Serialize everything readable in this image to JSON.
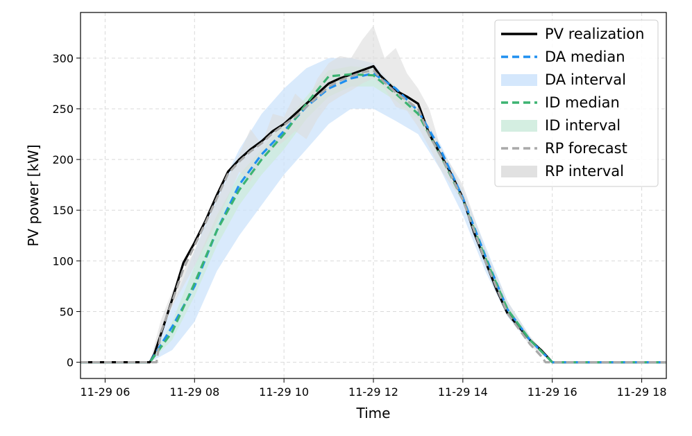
{
  "chart_data": {
    "type": "line",
    "title": "",
    "xlabel": "Time",
    "ylabel": "PV power [kW]",
    "x_unit": "hours (11-29)",
    "xlim": [
      5.45,
      18.55
    ],
    "ylim": [
      -16,
      345
    ],
    "grid": true,
    "legend_position": "top-right",
    "x_ticks": [
      {
        "value": 6,
        "label": "11-29 06"
      },
      {
        "value": 8,
        "label": "11-29 08"
      },
      {
        "value": 10,
        "label": "11-29 10"
      },
      {
        "value": 12,
        "label": "11-29 12"
      },
      {
        "value": 14,
        "label": "11-29 14"
      },
      {
        "value": 16,
        "label": "11-29 16"
      },
      {
        "value": 18,
        "label": "11-29 18"
      }
    ],
    "y_ticks": [
      {
        "value": 0,
        "label": "0"
      },
      {
        "value": 50,
        "label": "50"
      },
      {
        "value": 100,
        "label": "100"
      },
      {
        "value": 150,
        "label": "150"
      },
      {
        "value": 200,
        "label": "200"
      },
      {
        "value": 250,
        "label": "250"
      },
      {
        "value": 300,
        "label": "300"
      }
    ],
    "colors": {
      "pv": "#000000",
      "da": "#1f8ff0",
      "da_band": "#cce3fb",
      "id": "#3cb371",
      "id_band": "#cdebdc",
      "rp": "#a9a9a9",
      "rp_band": "#dcdcdc",
      "grid": "#d9d9d9"
    },
    "bands": [
      {
        "name": "DA interval",
        "x": [
          5.45,
          7.0,
          7.5,
          8.0,
          8.5,
          9.0,
          9.5,
          10.0,
          10.5,
          11.0,
          11.5,
          12.0,
          12.5,
          13.0,
          13.5,
          14.0,
          14.5,
          15.0,
          15.5,
          16.0,
          18.55
        ],
        "lower": [
          0,
          0,
          12,
          40,
          90,
          125,
          155,
          185,
          210,
          235,
          250,
          250,
          238,
          225,
          190,
          145,
          90,
          45,
          18,
          0,
          0
        ],
        "upper": [
          0,
          0,
          55,
          110,
          165,
          210,
          245,
          270,
          290,
          300,
          300,
          295,
          270,
          250,
          215,
          170,
          115,
          60,
          25,
          0,
          0
        ]
      },
      {
        "name": "ID interval",
        "x": [
          5.45,
          7.0,
          7.5,
          8.0,
          8.5,
          9.0,
          9.5,
          10.0,
          10.5,
          11.0,
          11.5,
          12.0,
          12.5,
          13.0,
          13.5,
          14.0,
          14.5,
          15.0,
          15.5,
          16.0,
          18.55
        ],
        "lower": [
          0,
          0,
          22,
          65,
          115,
          155,
          185,
          210,
          240,
          262,
          272,
          272,
          258,
          240,
          200,
          158,
          100,
          50,
          20,
          0,
          0
        ],
        "upper": [
          0,
          0,
          40,
          95,
          145,
          185,
          210,
          235,
          262,
          288,
          292,
          290,
          272,
          250,
          208,
          165,
          108,
          55,
          24,
          0,
          0
        ]
      },
      {
        "name": "RP interval",
        "x": [
          5.45,
          7.0,
          7.25,
          7.5,
          8.0,
          8.5,
          9.0,
          9.25,
          9.5,
          9.75,
          10.0,
          10.25,
          10.5,
          10.75,
          11.0,
          11.25,
          11.5,
          11.75,
          12.0,
          12.25,
          12.5,
          12.75,
          13.0,
          13.25,
          13.5,
          14.0,
          14.5,
          15.0,
          15.5,
          16.0,
          18.55
        ],
        "lower": [
          0,
          0,
          30,
          55,
          95,
          138,
          188,
          178,
          200,
          210,
          218,
          228,
          220,
          240,
          255,
          262,
          268,
          275,
          280,
          270,
          252,
          248,
          232,
          212,
          190,
          158,
          100,
          48,
          16,
          0,
          0
        ],
        "upper": [
          0,
          0,
          42,
          70,
          110,
          160,
          205,
          230,
          215,
          245,
          242,
          265,
          255,
          280,
          295,
          302,
          300,
          318,
          332,
          300,
          310,
          285,
          270,
          250,
          212,
          175,
          112,
          60,
          26,
          0,
          0
        ]
      }
    ],
    "series": [
      {
        "name": "PV realization",
        "style": "solid",
        "x": [
          5.45,
          7.0,
          7.1,
          7.25,
          7.5,
          7.75,
          8.0,
          8.25,
          8.5,
          8.75,
          9.0,
          9.25,
          9.5,
          9.75,
          10.0,
          10.25,
          10.5,
          10.75,
          11.0,
          11.25,
          11.5,
          11.75,
          12.0,
          12.15,
          12.5,
          12.75,
          13.0,
          13.25,
          13.5,
          13.75,
          14.0,
          14.25,
          14.5,
          14.75,
          15.0,
          15.25,
          15.5,
          15.75,
          16.0,
          18.55
        ],
        "y": [
          0,
          0,
          8,
          28,
          62,
          98,
          118,
          140,
          165,
          188,
          200,
          210,
          218,
          228,
          235,
          245,
          255,
          265,
          275,
          280,
          284,
          288,
          292,
          283,
          268,
          262,
          255,
          225,
          205,
          185,
          162,
          128,
          100,
          72,
          48,
          35,
          22,
          12,
          0,
          0
        ]
      },
      {
        "name": "DA median",
        "style": "dash",
        "x": [
          5.45,
          7.0,
          7.5,
          8.0,
          8.5,
          9.0,
          9.5,
          10.0,
          10.5,
          11.0,
          11.5,
          12.0,
          12.5,
          13.0,
          13.5,
          14.0,
          14.5,
          15.0,
          15.5,
          16.0,
          18.55
        ],
        "y": [
          0,
          0,
          35,
          75,
          130,
          175,
          205,
          228,
          252,
          270,
          280,
          285,
          270,
          248,
          210,
          162,
          105,
          52,
          22,
          0,
          0
        ]
      },
      {
        "name": "ID median",
        "style": "dash",
        "x": [
          5.45,
          7.0,
          7.5,
          8.0,
          8.5,
          9.0,
          9.5,
          10.0,
          10.5,
          11.0,
          11.5,
          12.0,
          12.5,
          13.0,
          13.5,
          14.0,
          14.5,
          15.0,
          15.5,
          16.0,
          18.55
        ],
        "y": [
          0,
          0,
          30,
          78,
          130,
          170,
          200,
          225,
          255,
          282,
          284,
          283,
          265,
          245,
          204,
          160,
          103,
          52,
          22,
          0,
          0
        ]
      },
      {
        "name": "RP forecast",
        "style": "dash",
        "x": [
          5.45,
          7.15,
          7.25,
          7.5,
          7.75,
          8.0,
          8.25,
          8.5,
          8.75,
          9.0,
          9.25,
          9.5,
          9.75,
          10.0,
          10.25,
          10.5,
          10.75,
          11.0,
          11.25,
          11.5,
          11.75,
          12.0,
          12.25,
          12.5,
          12.75,
          13.0,
          13.25,
          13.5,
          13.75,
          14.0,
          14.5,
          15.0,
          15.5,
          15.75,
          15.85,
          16.0,
          18.55
        ],
        "y": [
          0,
          0,
          30,
          60,
          92,
          115,
          138,
          162,
          186,
          198,
          208,
          216,
          226,
          234,
          242,
          252,
          262,
          272,
          278,
          282,
          286,
          288,
          276,
          266,
          258,
          250,
          224,
          204,
          183,
          160,
          100,
          48,
          18,
          6,
          0,
          0,
          0
        ]
      }
    ],
    "legend": [
      {
        "label": "PV realization",
        "kind": "solid"
      },
      {
        "label": "DA median",
        "kind": "dash"
      },
      {
        "label": "DA interval",
        "kind": "band"
      },
      {
        "label": "ID median",
        "kind": "dash"
      },
      {
        "label": "ID interval",
        "kind": "band"
      },
      {
        "label": "RP forecast",
        "kind": "dash"
      },
      {
        "label": "RP interval",
        "kind": "band"
      }
    ]
  }
}
